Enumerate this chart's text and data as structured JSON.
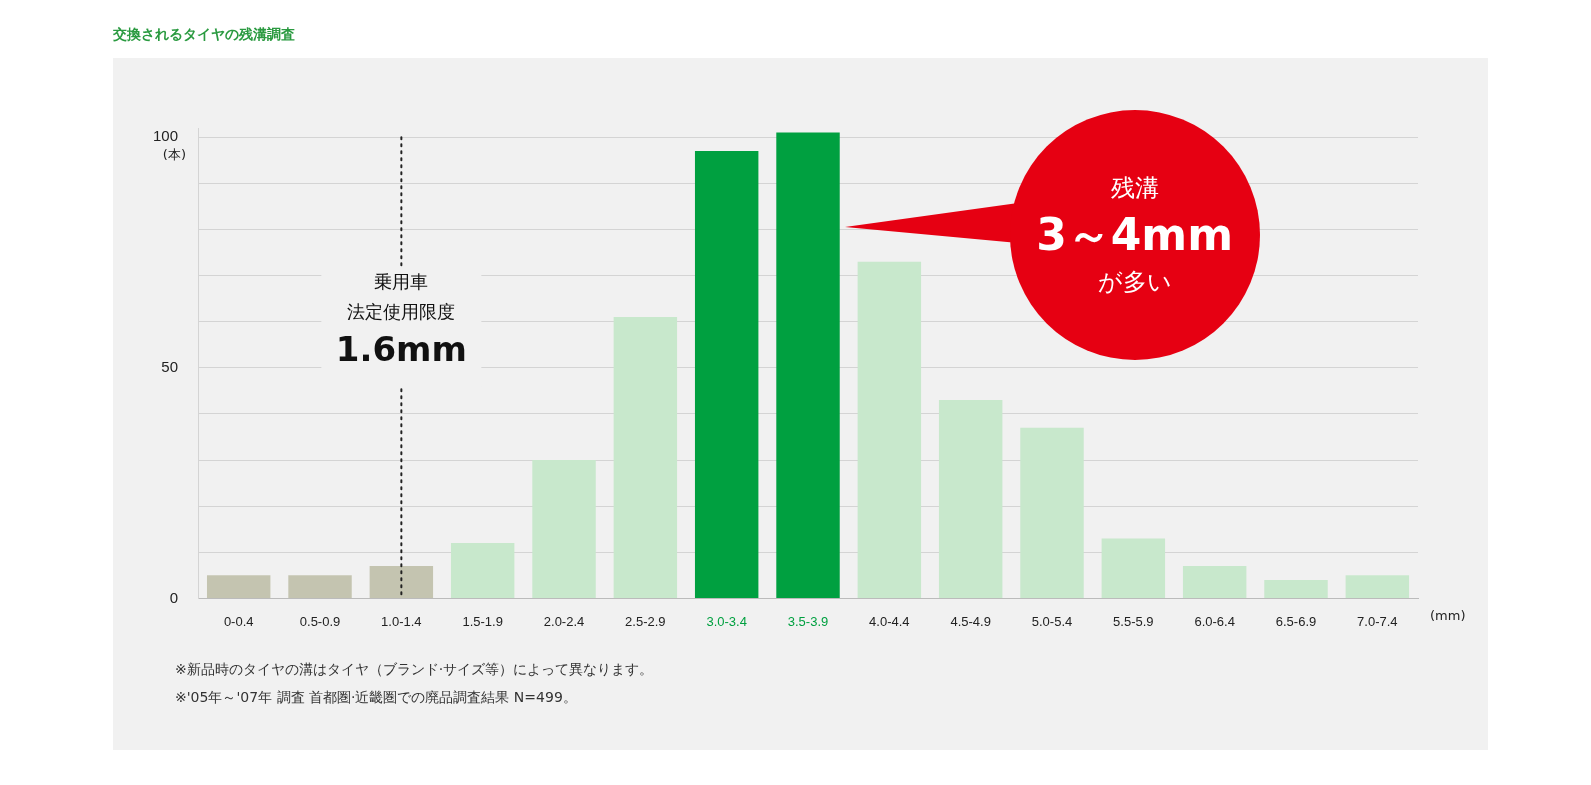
{
  "chart_data": {
    "type": "bar",
    "title": "交換されるタイヤの残溝調査",
    "xlabel": "(mm)",
    "ylabel": "(本)",
    "categories": [
      "0-0.4",
      "0.5-0.9",
      "1.0-1.4",
      "1.5-1.9",
      "2.0-2.4",
      "2.5-2.9",
      "3.0-3.4",
      "3.5-3.9",
      "4.0-4.4",
      "4.5-4.9",
      "5.0-5.4",
      "5.5-5.9",
      "6.0-6.4",
      "6.5-6.9",
      "7.0-7.4"
    ],
    "values": [
      5,
      5,
      7,
      12,
      30,
      61,
      97,
      101,
      73,
      43,
      37,
      13,
      7,
      4,
      5
    ],
    "colors": [
      "#c4c4b0",
      "#c4c4b0",
      "#c4c4b0",
      "#c8e8cc",
      "#c8e8cc",
      "#c8e8cc",
      "#00a040",
      "#00a040",
      "#c8e8cc",
      "#c8e8cc",
      "#c8e8cc",
      "#c8e8cc",
      "#c8e8cc",
      "#c8e8cc",
      "#c8e8cc"
    ],
    "ylim": [
      0,
      102
    ],
    "yticks": [
      0,
      {
        "value": 10,
        "label": null
      },
      {
        "value": 20,
        "label": null
      },
      {
        "value": 30,
        "label": null
      },
      {
        "value": 40,
        "label": null
      },
      50,
      {
        "value": 60,
        "label": null
      },
      {
        "value": 70,
        "label": null
      },
      {
        "value": 80,
        "label": null
      },
      {
        "value": 90,
        "label": null
      },
      100
    ],
    "grid": "y",
    "ref_lines": [
      {
        "axis": "x",
        "value": "1.0-1.4",
        "label": "1.6mm",
        "line_style": "dotted"
      }
    ],
    "annotations": [
      "乗用車",
      "法定使用限度",
      "残溝",
      "3～4mm",
      "が多い",
      "※新品時のタイヤの溝はタイヤ（ブランド·サイズ等）によって異なります。",
      "※'05年～'07年 調査 首都圏·近畿圏での廃品調査結果 N=499。"
    ]
  }
}
